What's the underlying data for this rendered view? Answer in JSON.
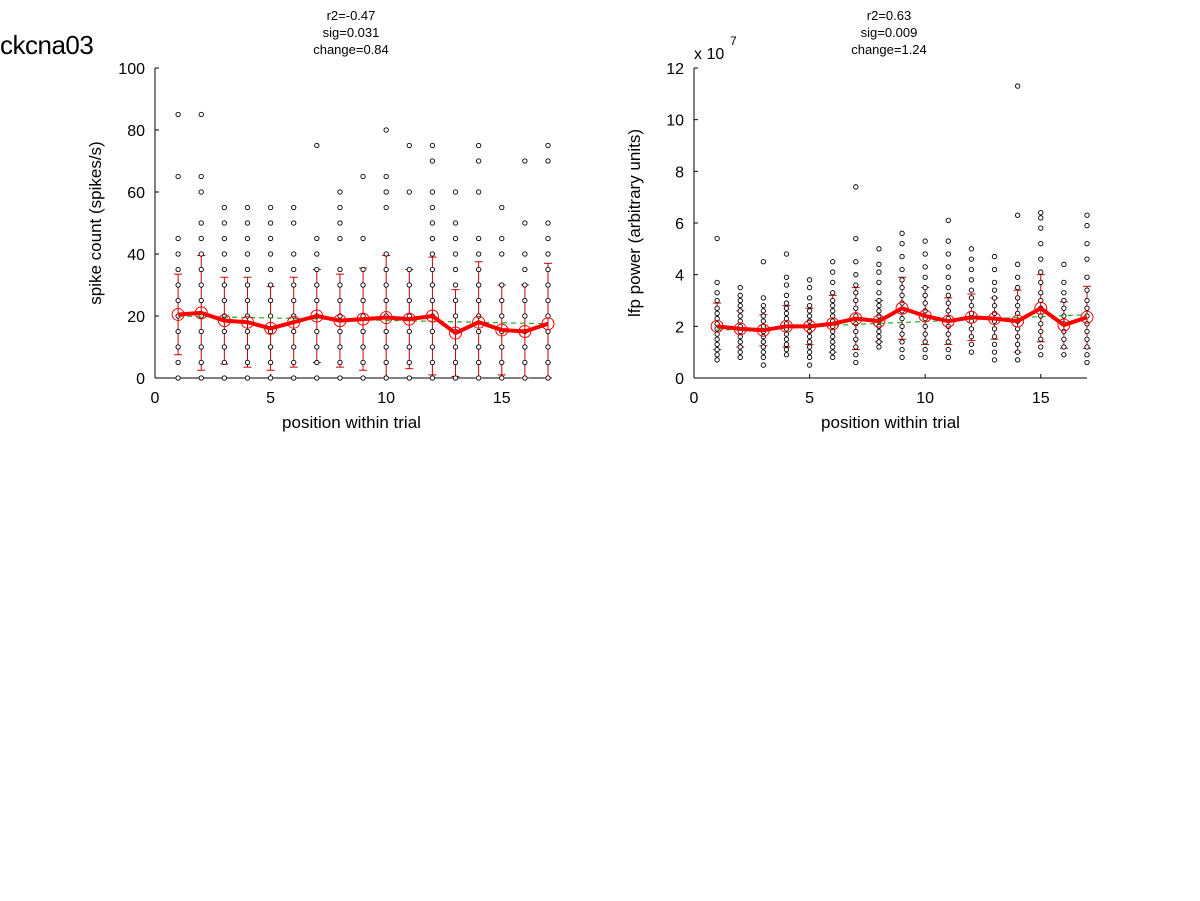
{
  "page": {
    "title": "ckcna03"
  },
  "chart_data": [
    {
      "type": "scatter",
      "title_lines": [
        "r2=-0.47",
        "sig=0.031",
        "change=0.84"
      ],
      "xlabel": "position within trial",
      "ylabel": "spike count (spikes/s)",
      "exponent_label": "",
      "xlim": [
        0,
        17
      ],
      "ylim": [
        0,
        100
      ],
      "xticks": [
        0,
        5,
        10,
        15
      ],
      "yticks": [
        0,
        20,
        40,
        60,
        80,
        100
      ],
      "grid": false,
      "colors": {
        "points": "#000000",
        "mean": "#ff0000",
        "mean_marker": "#ff0000",
        "errorbar": "#cc0000",
        "fit": "#22aa22"
      },
      "points": [
        {
          "x": 1,
          "y": [
            0,
            5,
            10,
            15,
            20,
            25,
            30,
            35,
            40,
            45,
            65,
            85
          ]
        },
        {
          "x": 2,
          "y": [
            0,
            5,
            10,
            15,
            20,
            25,
            30,
            35,
            40,
            45,
            50,
            60,
            65,
            85
          ]
        },
        {
          "x": 3,
          "y": [
            0,
            5,
            10,
            15,
            20,
            25,
            30,
            35,
            40,
            45,
            50,
            55
          ]
        },
        {
          "x": 4,
          "y": [
            0,
            5,
            10,
            15,
            20,
            25,
            30,
            35,
            40,
            45,
            50,
            55
          ]
        },
        {
          "x": 5,
          "y": [
            0,
            5,
            10,
            15,
            20,
            25,
            30,
            35,
            40,
            45,
            50,
            55
          ]
        },
        {
          "x": 6,
          "y": [
            0,
            5,
            10,
            15,
            20,
            25,
            30,
            35,
            40,
            50,
            55
          ]
        },
        {
          "x": 7,
          "y": [
            0,
            5,
            10,
            15,
            20,
            25,
            30,
            35,
            40,
            45,
            75
          ]
        },
        {
          "x": 8,
          "y": [
            0,
            5,
            10,
            15,
            20,
            25,
            30,
            35,
            45,
            50,
            55,
            60
          ]
        },
        {
          "x": 9,
          "y": [
            0,
            5,
            10,
            15,
            20,
            25,
            30,
            35,
            45,
            65
          ]
        },
        {
          "x": 10,
          "y": [
            0,
            5,
            10,
            15,
            20,
            25,
            30,
            35,
            40,
            55,
            60,
            65,
            80
          ]
        },
        {
          "x": 11,
          "y": [
            0,
            5,
            10,
            15,
            20,
            25,
            30,
            35,
            60,
            75
          ]
        },
        {
          "x": 12,
          "y": [
            0,
            5,
            10,
            15,
            20,
            25,
            30,
            35,
            40,
            45,
            50,
            55,
            60,
            70,
            75
          ]
        },
        {
          "x": 13,
          "y": [
            0,
            5,
            10,
            15,
            20,
            25,
            30,
            35,
            40,
            45,
            50,
            60
          ]
        },
        {
          "x": 14,
          "y": [
            0,
            5,
            10,
            15,
            20,
            25,
            30,
            35,
            40,
            45,
            60,
            70,
            75
          ]
        },
        {
          "x": 15,
          "y": [
            0,
            5,
            10,
            15,
            20,
            25,
            30,
            40,
            45,
            55
          ]
        },
        {
          "x": 16,
          "y": [
            0,
            5,
            10,
            15,
            20,
            25,
            30,
            35,
            40,
            50,
            70
          ]
        },
        {
          "x": 17,
          "y": [
            0,
            5,
            10,
            15,
            20,
            25,
            30,
            35,
            40,
            45,
            50,
            70,
            75
          ]
        }
      ],
      "mean": [
        20.5,
        21,
        18.5,
        18,
        16,
        18,
        20,
        18.5,
        19,
        19.5,
        19,
        20,
        14.5,
        18,
        15.5,
        15,
        17.5
      ],
      "error": [
        13,
        18.5,
        14,
        14.5,
        13.5,
        14.5,
        15,
        15,
        16.5,
        20,
        16,
        19,
        14,
        19.5,
        14.5,
        15,
        19.5
      ],
      "fit": [
        20,
        17.5
      ]
    },
    {
      "type": "scatter",
      "title_lines": [
        "r2=0.63",
        "sig=0.009",
        "change=1.24"
      ],
      "xlabel": "position within trial",
      "ylabel": "lfp power (arbitrary units)",
      "exponent_label": "x 10",
      "exponent_power": "7",
      "xlim": [
        0,
        17
      ],
      "ylim": [
        0,
        12
      ],
      "xticks": [
        0,
        5,
        10,
        15
      ],
      "yticks": [
        0,
        2,
        4,
        6,
        8,
        10,
        12
      ],
      "grid": false,
      "colors": {
        "points": "#000000",
        "mean": "#ff0000",
        "mean_marker": "#ff0000",
        "errorbar": "#cc0000",
        "fit": "#22aa22"
      },
      "points": [
        {
          "x": 1,
          "y": [
            0.7,
            0.9,
            1.1,
            1.3,
            1.5,
            1.7,
            1.9,
            2.1,
            2.3,
            2.5,
            2.7,
            3.0,
            3.3,
            3.7,
            5.4
          ]
        },
        {
          "x": 2,
          "y": [
            0.8,
            1.0,
            1.2,
            1.4,
            1.6,
            1.8,
            2.0,
            2.2,
            2.4,
            2.6,
            2.8,
            3.0,
            3.2,
            3.5
          ]
        },
        {
          "x": 3,
          "y": [
            0.5,
            0.8,
            1.0,
            1.2,
            1.4,
            1.6,
            1.8,
            2.0,
            2.2,
            2.4,
            2.6,
            2.8,
            3.1,
            4.5
          ]
        },
        {
          "x": 4,
          "y": [
            0.9,
            1.1,
            1.3,
            1.5,
            1.7,
            1.9,
            2.1,
            2.3,
            2.5,
            2.7,
            2.9,
            3.2,
            3.6,
            3.9,
            4.8
          ]
        },
        {
          "x": 5,
          "y": [
            0.5,
            0.8,
            1.0,
            1.2,
            1.4,
            1.6,
            1.8,
            2.0,
            2.2,
            2.4,
            2.6,
            2.8,
            3.1,
            3.5,
            3.8
          ]
        },
        {
          "x": 6,
          "y": [
            0.8,
            1.0,
            1.2,
            1.4,
            1.6,
            1.8,
            2.0,
            2.2,
            2.4,
            2.6,
            2.8,
            3.0,
            3.3,
            3.7,
            4.1,
            4.5
          ]
        },
        {
          "x": 7,
          "y": [
            0.6,
            0.9,
            1.2,
            1.5,
            1.8,
            2.1,
            2.4,
            2.7,
            3.0,
            3.3,
            3.6,
            4.0,
            4.5,
            5.4,
            7.4
          ]
        },
        {
          "x": 8,
          "y": [
            1.2,
            1.4,
            1.6,
            1.8,
            2.0,
            2.2,
            2.4,
            2.6,
            2.8,
            3.0,
            3.3,
            3.7,
            4.1,
            4.4,
            5.0
          ]
        },
        {
          "x": 9,
          "y": [
            0.8,
            1.1,
            1.4,
            1.7,
            2.0,
            2.3,
            2.6,
            2.9,
            3.2,
            3.5,
            3.8,
            4.2,
            4.7,
            5.2,
            5.6
          ]
        },
        {
          "x": 10,
          "y": [
            0.8,
            1.1,
            1.4,
            1.7,
            2.0,
            2.3,
            2.6,
            2.9,
            3.2,
            3.5,
            3.9,
            4.3,
            4.8,
            5.3
          ]
        },
        {
          "x": 11,
          "y": [
            0.8,
            1.1,
            1.4,
            1.7,
            2.0,
            2.3,
            2.6,
            2.9,
            3.2,
            3.5,
            3.9,
            4.3,
            4.8,
            5.3,
            6.1
          ]
        },
        {
          "x": 12,
          "y": [
            1.0,
            1.3,
            1.6,
            1.9,
            2.2,
            2.5,
            2.8,
            3.1,
            3.4,
            3.8,
            4.2,
            4.6,
            5.0
          ]
        },
        {
          "x": 13,
          "y": [
            0.7,
            1.0,
            1.3,
            1.6,
            1.9,
            2.2,
            2.5,
            2.8,
            3.1,
            3.4,
            3.7,
            4.2,
            4.7
          ]
        },
        {
          "x": 14,
          "y": [
            0.7,
            1.0,
            1.3,
            1.6,
            1.9,
            2.2,
            2.5,
            2.8,
            3.1,
            3.5,
            3.9,
            4.4,
            6.3,
            11.3
          ]
        },
        {
          "x": 15,
          "y": [
            0.9,
            1.2,
            1.5,
            1.8,
            2.1,
            2.4,
            2.7,
            3.0,
            3.3,
            3.7,
            4.1,
            4.6,
            5.2,
            5.8,
            6.2,
            6.4
          ]
        },
        {
          "x": 16,
          "y": [
            0.9,
            1.2,
            1.5,
            1.8,
            2.1,
            2.4,
            2.7,
            3.0,
            3.3,
            3.7,
            4.4
          ]
        },
        {
          "x": 17,
          "y": [
            0.6,
            0.9,
            1.2,
            1.5,
            1.8,
            2.1,
            2.4,
            2.7,
            3.0,
            3.4,
            3.9,
            4.6,
            5.2,
            5.9,
            6.3
          ]
        }
      ],
      "mean": [
        2.0,
        1.9,
        1.85,
        2.0,
        2.0,
        2.1,
        2.3,
        2.2,
        2.7,
        2.4,
        2.2,
        2.35,
        2.3,
        2.2,
        2.7,
        2.05,
        2.35
      ],
      "error": [
        0.9,
        0.7,
        0.6,
        0.8,
        0.7,
        1.1,
        1.2,
        0.8,
        1.2,
        1.1,
        0.9,
        0.9,
        0.8,
        1.2,
        1.3,
        0.9,
        1.2
      ],
      "fit": [
        1.85,
        2.45
      ]
    }
  ]
}
